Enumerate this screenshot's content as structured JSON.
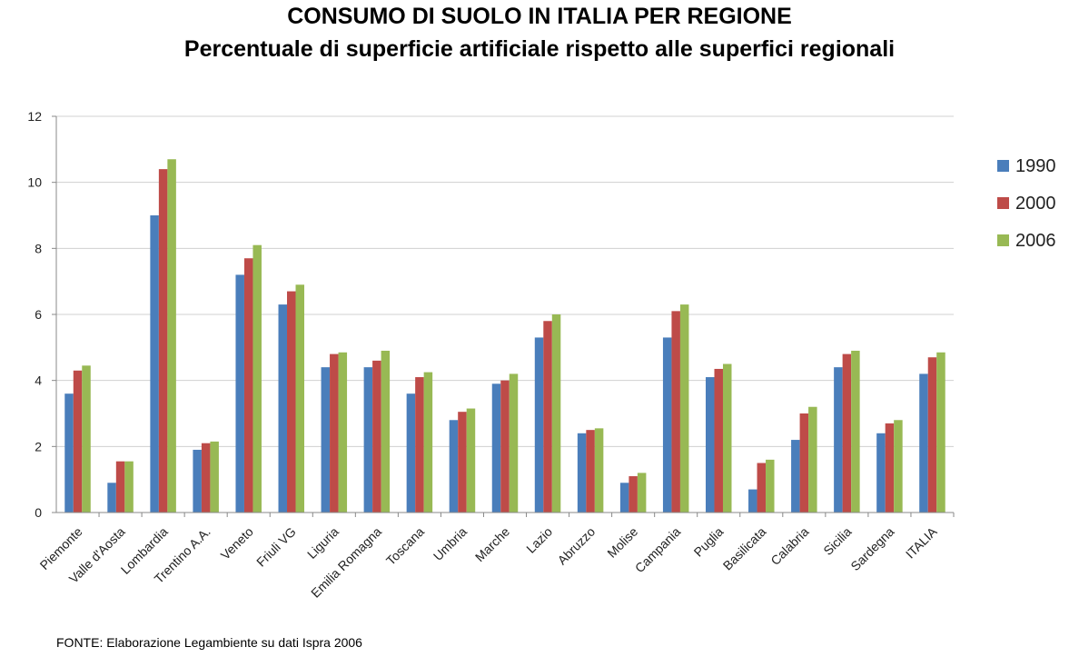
{
  "header": {
    "title": "CONSUMO DI SUOLO IN ITALIA PER REGIONE",
    "subtitle": "Percentuale di superficie artificiale rispetto alle superfici regionali"
  },
  "footer": {
    "source": "FONTE: Elaborazione Legambiente su dati Ispra 2006"
  },
  "chart_data": {
    "type": "bar",
    "title": "CONSUMO DI SUOLO IN ITALIA PER REGIONE",
    "subtitle": "Percentuale di superficie artificiale rispetto alle superfici regionali",
    "xlabel": "",
    "ylabel": "",
    "ylim": [
      0,
      12
    ],
    "yticks": [
      0,
      2,
      4,
      6,
      8,
      10,
      12
    ],
    "grid": true,
    "legend_position": "right",
    "categories": [
      "Piemonte",
      "Valle d'Aosta",
      "Lombardia",
      "Trentino A.A.",
      "Veneto",
      "Friuli VG",
      "Liguria",
      "Emilia Romagna",
      "Toscana",
      "Umbria",
      "Marche",
      "Lazio",
      "Abruzzo",
      "Molise",
      "Campania",
      "Puglia",
      "Basilicata",
      "Calabria",
      "Sicilia",
      "Sardegna",
      "ITALIA"
    ],
    "series": [
      {
        "name": "1990",
        "color": "#4a7ebb",
        "values": [
          3.6,
          0.9,
          9.0,
          1.9,
          7.2,
          6.3,
          4.4,
          4.4,
          3.6,
          2.8,
          3.9,
          5.3,
          2.4,
          0.9,
          5.3,
          4.1,
          0.7,
          2.2,
          4.4,
          2.4,
          4.2
        ]
      },
      {
        "name": "2000",
        "color": "#be4b48",
        "values": [
          4.3,
          1.55,
          10.4,
          2.1,
          7.7,
          6.7,
          4.8,
          4.6,
          4.1,
          3.05,
          4.0,
          5.8,
          2.5,
          1.1,
          6.1,
          4.35,
          1.5,
          3.0,
          4.8,
          2.7,
          4.7
        ]
      },
      {
        "name": "2006",
        "color": "#98b954",
        "values": [
          4.45,
          1.55,
          10.7,
          2.15,
          8.1,
          6.9,
          4.85,
          4.9,
          4.25,
          3.15,
          4.2,
          6.0,
          2.55,
          1.2,
          6.3,
          4.5,
          1.6,
          3.2,
          4.9,
          2.8,
          4.85
        ]
      }
    ]
  }
}
